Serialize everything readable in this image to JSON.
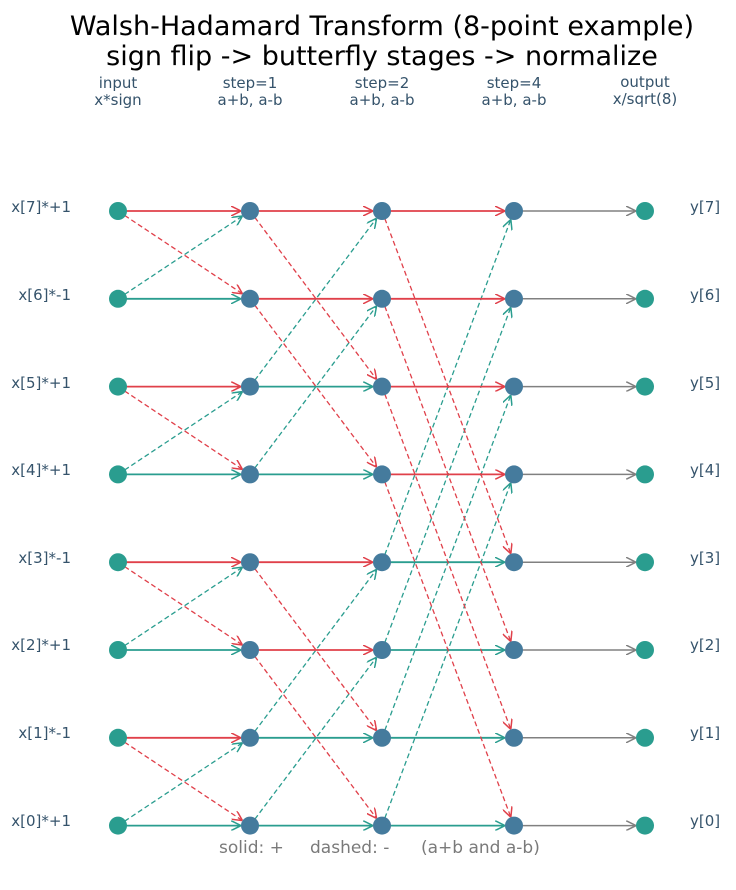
{
  "title": {
    "line1": "Walsh-Hadamard Transform (8-point example)",
    "line2": "sign flip -> butterfly stages -> normalize"
  },
  "columns": [
    {
      "label": "input",
      "sub": "x*sign"
    },
    {
      "label": "step=1",
      "sub": "a+b, a-b"
    },
    {
      "label": "step=2",
      "sub": "a+b, a-b"
    },
    {
      "label": "step=4",
      "sub": "a+b, a-b"
    },
    {
      "label": "output",
      "sub": "x/sqrt(8)"
    }
  ],
  "input_labels": [
    "x[7]*+1",
    "x[6]*-1",
    "x[5]*+1",
    "x[4]*+1",
    "x[3]*-1",
    "x[2]*+1",
    "x[1]*-1",
    "x[0]*+1"
  ],
  "output_labels": [
    "y[7]",
    "y[6]",
    "y[5]",
    "y[4]",
    "y[3]",
    "y[2]",
    "y[1]",
    "y[0]"
  ],
  "butterfly_steps": [
    1,
    2,
    4
  ],
  "n_points": 8,
  "legend": {
    "solid": "solid: +",
    "dashed": "dashed: -",
    "note": "(a+b and a-b)"
  },
  "colors": {
    "plus_edge": "#e0404a",
    "minus_edge": "#2a9d8f",
    "output_edge": "#808080",
    "io_node": "#2a9d8f",
    "stage_node": "#457b9d"
  }
}
